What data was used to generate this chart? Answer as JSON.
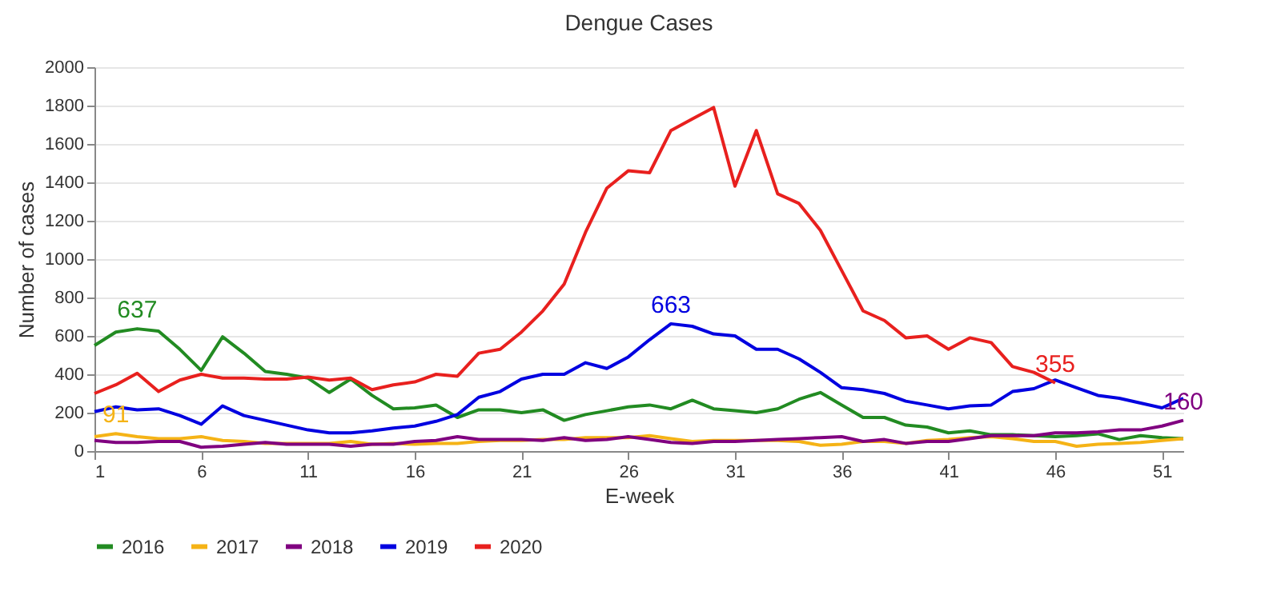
{
  "chart_data": {
    "type": "line",
    "title": "Dengue Cases",
    "xlabel": "E-week",
    "ylabel": "Number of cases",
    "x": [
      1,
      2,
      3,
      4,
      5,
      6,
      7,
      8,
      9,
      10,
      11,
      12,
      13,
      14,
      15,
      16,
      17,
      18,
      19,
      20,
      21,
      22,
      23,
      24,
      25,
      26,
      27,
      28,
      29,
      30,
      31,
      32,
      33,
      34,
      35,
      36,
      37,
      38,
      39,
      40,
      41,
      42,
      43,
      44,
      45,
      46,
      47,
      48,
      49,
      50,
      51,
      52
    ],
    "series": [
      {
        "name": "2016",
        "color": "#228b22",
        "values": [
          550,
          620,
          637,
          625,
          530,
          420,
          595,
          510,
          415,
          400,
          380,
          305,
          375,
          290,
          220,
          225,
          240,
          175,
          215,
          215,
          200,
          215,
          160,
          190,
          210,
          230,
          240,
          220,
          265,
          220,
          210,
          200,
          220,
          270,
          305,
          240,
          175,
          175,
          135,
          125,
          95,
          105,
          85,
          85,
          80,
          75,
          80,
          90,
          60,
          80,
          70,
          65
        ]
      },
      {
        "name": "2017",
        "color": "#f5b316",
        "values": [
          75,
          91,
          75,
          65,
          65,
          75,
          55,
          50,
          40,
          40,
          40,
          40,
          50,
          35,
          40,
          35,
          40,
          40,
          50,
          55,
          55,
          60,
          60,
          70,
          70,
          70,
          80,
          65,
          50,
          55,
          55,
          55,
          55,
          50,
          30,
          35,
          50,
          50,
          40,
          55,
          60,
          70,
          75,
          65,
          50,
          50,
          25,
          35,
          40,
          45,
          55,
          65
        ]
      },
      {
        "name": "2018",
        "color": "#800080",
        "values": [
          55,
          45,
          45,
          50,
          50,
          20,
          25,
          35,
          45,
          35,
          35,
          35,
          25,
          35,
          35,
          50,
          55,
          75,
          60,
          60,
          60,
          55,
          70,
          55,
          60,
          75,
          60,
          45,
          40,
          50,
          50,
          55,
          60,
          65,
          70,
          75,
          50,
          60,
          40,
          50,
          50,
          65,
          80,
          80,
          80,
          95,
          95,
          100,
          110,
          110,
          130,
          160
        ]
      },
      {
        "name": "2019",
        "color": "#0000e0",
        "values": [
          205,
          230,
          215,
          220,
          185,
          140,
          235,
          185,
          160,
          135,
          110,
          95,
          95,
          105,
          120,
          130,
          155,
          190,
          280,
          310,
          375,
          400,
          400,
          460,
          430,
          490,
          580,
          663,
          650,
          610,
          600,
          530,
          530,
          480,
          410,
          330,
          320,
          300,
          260,
          240,
          220,
          235,
          240,
          310,
          325,
          370,
          330,
          290,
          275,
          250,
          225,
          275
        ]
      },
      {
        "name": "2020",
        "color": "#e8201e",
        "values": [
          300,
          345,
          405,
          310,
          370,
          400,
          380,
          380,
          375,
          375,
          385,
          370,
          380,
          320,
          345,
          360,
          400,
          390,
          510,
          530,
          620,
          730,
          870,
          1140,
          1370,
          1460,
          1450,
          1670,
          1730,
          1790,
          1380,
          1670,
          1340,
          1290,
          1150,
          940,
          730,
          680,
          590,
          600,
          530,
          590,
          565,
          440,
          410,
          355,
          null,
          null,
          null,
          null,
          null,
          null
        ]
      }
    ],
    "xlim": [
      1,
      52
    ],
    "xticks": [
      1,
      6,
      11,
      16,
      21,
      26,
      31,
      36,
      41,
      46,
      51
    ],
    "ylim": [
      0,
      2000
    ],
    "yticks": [
      0,
      200,
      400,
      600,
      800,
      1000,
      1200,
      1400,
      1600,
      1800,
      2000
    ],
    "grid": "y",
    "legend": "bottom",
    "marker": "none",
    "line_style": "solid",
    "annotations": [
      {
        "text": "637",
        "x": 3,
        "y": 637
      },
      {
        "text": "91",
        "x": 2,
        "y": 91
      },
      {
        "text": "663",
        "x": 28,
        "y": 663
      },
      {
        "text": "355",
        "x": 46,
        "y": 355
      },
      {
        "text": "160",
        "x": 52,
        "y": 160
      }
    ]
  }
}
